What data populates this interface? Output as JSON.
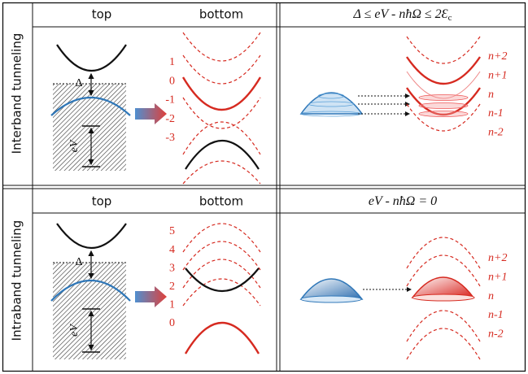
{
  "rows": [
    {
      "side_label": "Interband tunneling",
      "top_header": "top",
      "bottom_header": "bottom",
      "condition": "Δ ≤ eV - nħΩ ≤ 2Ɛ",
      "condition_subscript": "c",
      "gap_label": "Δ",
      "bias_label": "eV",
      "level_labels": [
        "1",
        "0",
        "-1",
        "-2",
        "-3"
      ],
      "replica_labels": [
        "n+2",
        "n+1",
        "n",
        "n-1",
        "n-2"
      ]
    },
    {
      "side_label": "Intraband tunneling",
      "top_header": "top",
      "bottom_header": "bottom",
      "condition": "eV - nħΩ = 0",
      "gap_label": "Δ",
      "bias_label": "eV",
      "level_labels": [
        "5",
        "4",
        "3",
        "2",
        "1",
        "0"
      ],
      "replica_labels": [
        "n+2",
        "n+1",
        "n",
        "n-1",
        "n-2"
      ]
    }
  ]
}
